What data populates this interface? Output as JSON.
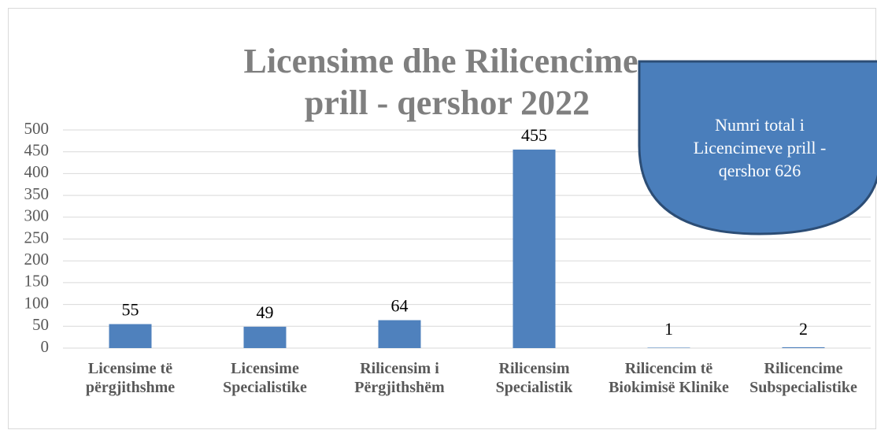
{
  "chart_data": {
    "type": "bar",
    "title": "Licensime dhe Rilicencime",
    "subtitle": "prill - qershor 2022",
    "categories": [
      "Licensime të përgjithshme",
      "Licensime Specialistike",
      "Rilicensim i Përgjithshëm",
      "Rilicensim Specialistik",
      "Rilicencim të Biokimisë Klinike",
      "Rilicencime Subspecialistike"
    ],
    "values": [
      55,
      49,
      64,
      455,
      1,
      2
    ],
    "color": "#4f81bd",
    "ylim": [
      0,
      500
    ],
    "yticks": [
      0,
      50,
      100,
      150,
      200,
      250,
      300,
      350,
      400,
      450,
      500
    ],
    "grid": true,
    "annotation": "Numri total i Licencimeve prill - qershor 626"
  }
}
